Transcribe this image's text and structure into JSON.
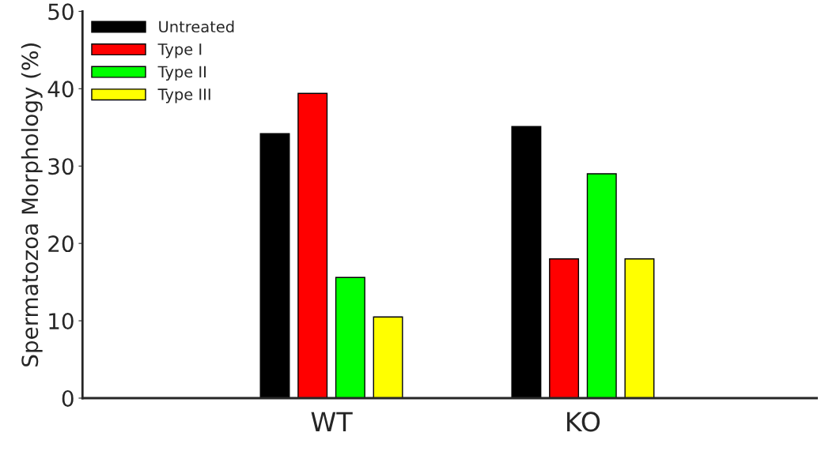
{
  "chart_data": {
    "type": "bar",
    "ylabel": "Spermatozoa Morphology (%)",
    "categories": [
      "WT",
      "KO"
    ],
    "series": [
      {
        "name": "Untreated",
        "color": "#000000",
        "values": [
          34.2,
          35.1
        ]
      },
      {
        "name": "Type I",
        "color": "#ff0000",
        "values": [
          39.4,
          18.0
        ]
      },
      {
        "name": "Type II",
        "color": "#00ff00",
        "values": [
          15.6,
          29.0
        ]
      },
      {
        "name": "Type III",
        "color": "#ffff00",
        "values": [
          10.5,
          18.0
        ]
      }
    ],
    "ylim": [
      0,
      50
    ],
    "yticks": [
      0,
      10,
      20,
      30,
      40,
      50
    ],
    "legend": "top left",
    "grid": false
  }
}
